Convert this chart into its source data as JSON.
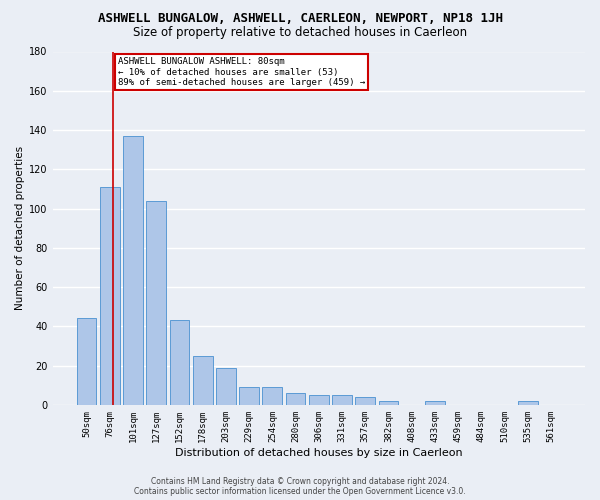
{
  "title": "ASHWELL BUNGALOW, ASHWELL, CAERLEON, NEWPORT, NP18 1JH",
  "subtitle": "Size of property relative to detached houses in Caerleon",
  "xlabel": "Distribution of detached houses by size in Caerleon",
  "ylabel": "Number of detached properties",
  "footer_line1": "Contains HM Land Registry data © Crown copyright and database right 2024.",
  "footer_line2": "Contains public sector information licensed under the Open Government Licence v3.0.",
  "categories": [
    "50sqm",
    "76sqm",
    "101sqm",
    "127sqm",
    "152sqm",
    "178sqm",
    "203sqm",
    "229sqm",
    "254sqm",
    "280sqm",
    "306sqm",
    "331sqm",
    "357sqm",
    "382sqm",
    "408sqm",
    "433sqm",
    "459sqm",
    "484sqm",
    "510sqm",
    "535sqm",
    "561sqm"
  ],
  "values": [
    44,
    111,
    137,
    104,
    43,
    25,
    19,
    9,
    9,
    6,
    5,
    5,
    4,
    2,
    0,
    2,
    0,
    0,
    0,
    2,
    0
  ],
  "bar_color": "#aec6e8",
  "bar_edge_color": "#5b9bd5",
  "vline_color": "#cc0000",
  "vline_x": 1.15,
  "annotation_text": "ASHWELL BUNGALOW ASHWELL: 80sqm\n← 10% of detached houses are smaller (53)\n89% of semi-detached houses are larger (459) →",
  "annotation_box_color": "#ffffff",
  "annotation_box_edge_color": "#cc0000",
  "ylim": [
    0,
    180
  ],
  "yticks": [
    0,
    20,
    40,
    60,
    80,
    100,
    120,
    140,
    160,
    180
  ],
  "bg_color": "#eaeef5",
  "plot_bg_color": "#eaeef5",
  "grid_color": "#ffffff",
  "title_fontsize": 9,
  "subtitle_fontsize": 8.5,
  "ylabel_fontsize": 7.5,
  "xlabel_fontsize": 8,
  "tick_fontsize": 6.5,
  "annotation_fontsize": 6.5,
  "footer_fontsize": 5.5
}
